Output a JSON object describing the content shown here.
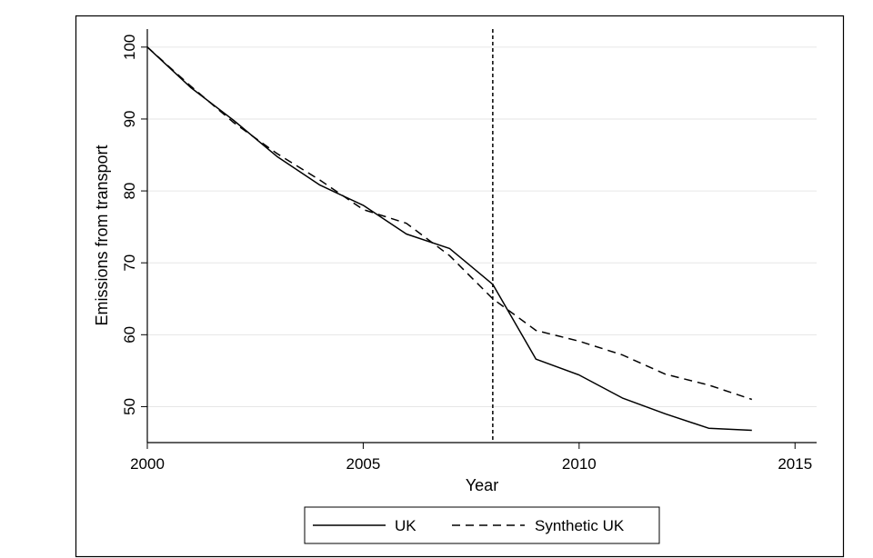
{
  "chart_data": {
    "type": "line",
    "title": "",
    "xlabel": "Year",
    "ylabel": "Emissions from transport",
    "xlim": [
      2000,
      2015.5
    ],
    "ylim": [
      45,
      102
    ],
    "x_ticks": [
      2000,
      2005,
      2010,
      2015
    ],
    "y_ticks": [
      50,
      60,
      70,
      80,
      90,
      100
    ],
    "grid": "horizontal",
    "legend_position": "bottom",
    "reference_line": {
      "x": 2008,
      "style": "dashed"
    },
    "x": [
      2000,
      2001,
      2002,
      2003,
      2004,
      2005,
      2006,
      2007,
      2008,
      2009,
      2010,
      2011,
      2012,
      2013,
      2014
    ],
    "series": [
      {
        "name": "UK",
        "style": "solid",
        "color": "#000000",
        "values": [
          100,
          94.4,
          89.8,
          84.8,
          80.8,
          78.0,
          74.0,
          72.0,
          67.0,
          56.6,
          54.4,
          51.2,
          49.0,
          47.0,
          46.7
        ]
      },
      {
        "name": "Synthetic UK",
        "style": "dashed",
        "color": "#000000",
        "values": [
          100,
          94.6,
          89.5,
          85.2,
          81.5,
          77.4,
          75.5,
          71.0,
          65.0,
          60.6,
          59.1,
          57.2,
          54.5,
          53.0,
          51.0
        ]
      }
    ]
  },
  "colors": {
    "frame": "#000000",
    "grid": "#e6e6e6",
    "background": "#ffffff"
  }
}
